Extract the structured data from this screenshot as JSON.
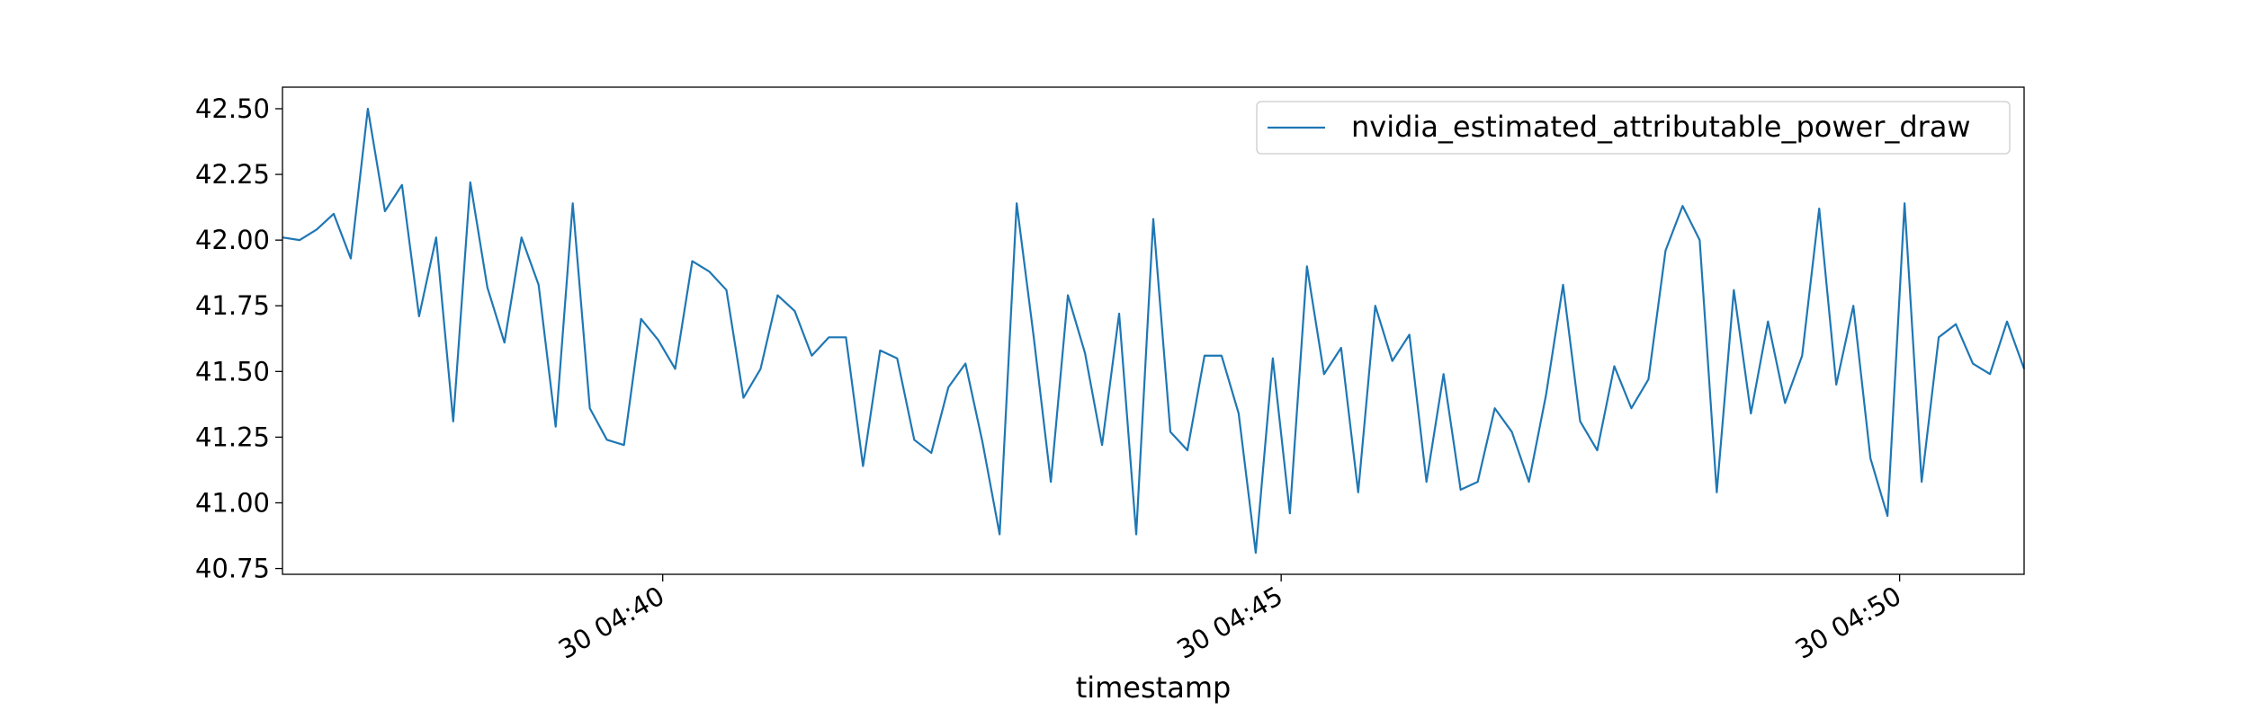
{
  "chart_data": {
    "type": "line",
    "xlabel": "timestamp",
    "series": [
      {
        "name": "nvidia_estimated_attributable_power_draw",
        "color": "#1f77b4",
        "values": [
          42.01,
          42.0,
          42.04,
          42.1,
          41.93,
          42.5,
          42.11,
          42.21,
          41.71,
          42.01,
          41.31,
          42.22,
          41.82,
          41.61,
          42.01,
          41.83,
          41.29,
          42.14,
          41.36,
          41.24,
          41.22,
          41.7,
          41.62,
          41.51,
          41.92,
          41.88,
          41.81,
          41.4,
          41.51,
          41.79,
          41.73,
          41.56,
          41.63,
          41.63,
          41.14,
          41.58,
          41.55,
          41.24,
          41.19,
          41.44,
          41.53,
          41.23,
          40.88,
          42.14,
          41.63,
          41.08,
          41.79,
          41.57,
          41.22,
          41.72,
          40.88,
          42.08,
          41.27,
          41.2,
          41.56,
          41.56,
          41.34,
          40.81,
          41.55,
          40.96,
          41.9,
          41.49,
          41.59,
          41.04,
          41.75,
          41.54,
          41.64,
          41.08,
          41.49,
          41.05,
          41.08,
          41.36,
          41.27,
          41.08,
          41.41,
          41.83,
          41.31,
          41.2,
          41.52,
          41.36,
          41.47,
          41.96,
          42.13,
          42.0,
          41.04,
          41.81,
          41.34,
          41.69,
          41.38,
          41.56,
          42.12,
          41.45,
          41.75,
          41.17,
          40.95,
          42.14,
          41.08,
          41.63,
          41.68,
          41.53,
          41.49,
          41.69,
          41.51
        ]
      }
    ],
    "xlim": [
      0,
      102
    ],
    "xticks": [
      {
        "value": 22.27,
        "label": "30 04:40"
      },
      {
        "value": 58.49,
        "label": "30 04:45"
      },
      {
        "value": 94.71,
        "label": "30 04:50"
      }
    ],
    "ylim": [
      40.728,
      42.582
    ],
    "yticks": [
      40.75,
      {
        "value": 41.0,
        "label": "41.00"
      },
      41.25,
      {
        "value": 41.5,
        "label": "41.50"
      },
      41.75,
      {
        "value": 42.0,
        "label": "42.00"
      },
      42.25,
      {
        "value": 42.5,
        "label": "42.50"
      }
    ],
    "grid": false,
    "legend": "upper right"
  }
}
